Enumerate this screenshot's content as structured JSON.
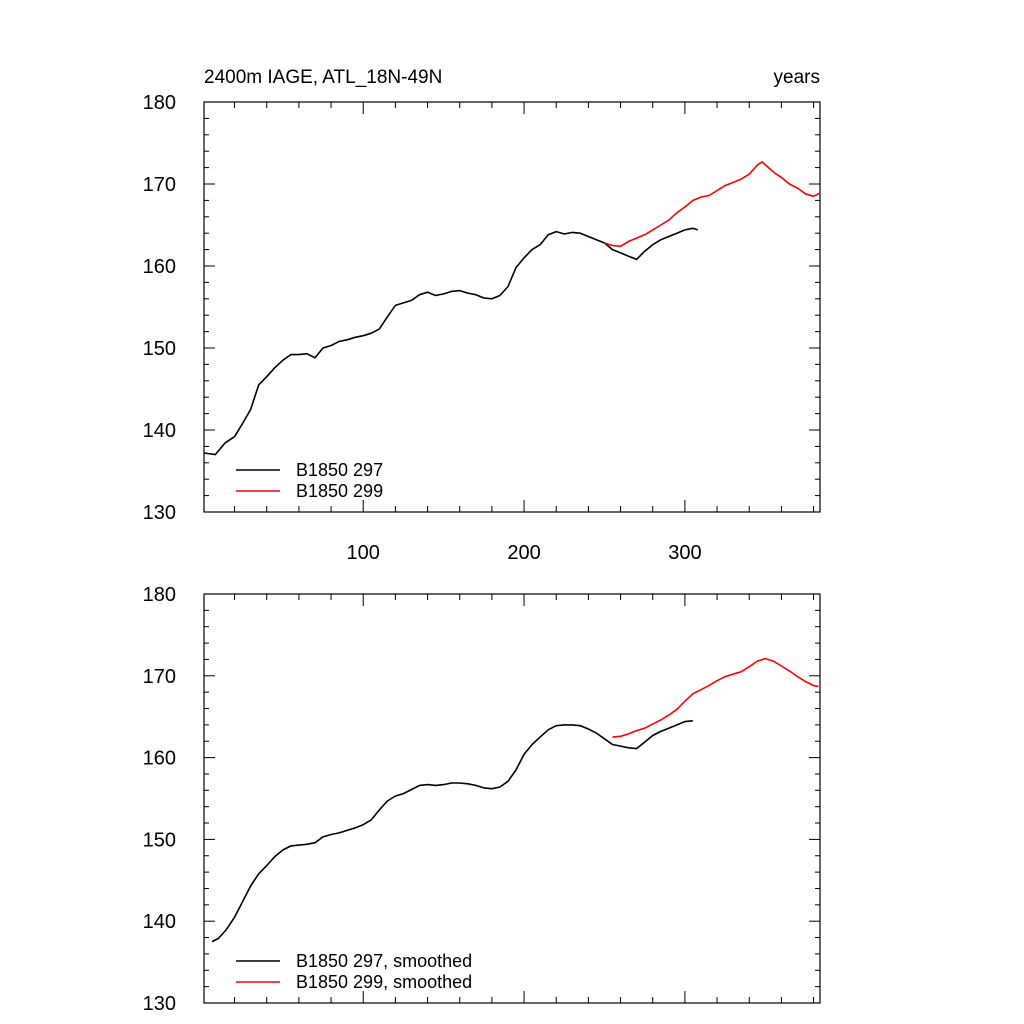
{
  "chart_data": [
    {
      "type": "line",
      "title": "2400m IAGE, ATL_18N-49N",
      "units_label": "years",
      "xlim": [
        1,
        384
      ],
      "ylim": [
        130,
        180
      ],
      "x_ticks": [
        100,
        200,
        300
      ],
      "y_ticks": [
        130,
        140,
        150,
        160,
        170,
        180
      ],
      "x_tick_labels": [
        "100",
        "200",
        "300"
      ],
      "y_tick_labels": [
        "130",
        "140",
        "150",
        "160",
        "170",
        "180"
      ],
      "legend_position": "bottom-left",
      "series": [
        {
          "name": "B1850 297",
          "color": "#000000",
          "points": [
            [
              1,
              137.2
            ],
            [
              8,
              137.0
            ],
            [
              14,
              138.4
            ],
            [
              20,
              139.2
            ],
            [
              25,
              140.8
            ],
            [
              30,
              142.5
            ],
            [
              35,
              145.5
            ],
            [
              40,
              146.5
            ],
            [
              45,
              147.6
            ],
            [
              50,
              148.5
            ],
            [
              55,
              149.2
            ],
            [
              60,
              149.2
            ],
            [
              65,
              149.3
            ],
            [
              70,
              148.8
            ],
            [
              75,
              150.0
            ],
            [
              80,
              150.3
            ],
            [
              85,
              150.8
            ],
            [
              90,
              151.0
            ],
            [
              95,
              151.3
            ],
            [
              100,
              151.5
            ],
            [
              105,
              151.8
            ],
            [
              110,
              152.3
            ],
            [
              115,
              153.8
            ],
            [
              120,
              155.2
            ],
            [
              125,
              155.5
            ],
            [
              130,
              155.8
            ],
            [
              135,
              156.5
            ],
            [
              140,
              156.8
            ],
            [
              145,
              156.4
            ],
            [
              150,
              156.6
            ],
            [
              155,
              156.9
            ],
            [
              160,
              157.0
            ],
            [
              165,
              156.7
            ],
            [
              170,
              156.5
            ],
            [
              175,
              156.1
            ],
            [
              180,
              156.0
            ],
            [
              185,
              156.4
            ],
            [
              190,
              157.5
            ],
            [
              195,
              159.8
            ],
            [
              200,
              161.0
            ],
            [
              205,
              162.0
            ],
            [
              210,
              162.6
            ],
            [
              215,
              163.8
            ],
            [
              220,
              164.2
            ],
            [
              225,
              163.9
            ],
            [
              230,
              164.1
            ],
            [
              235,
              164.0
            ],
            [
              240,
              163.6
            ],
            [
              245,
              163.2
            ],
            [
              250,
              162.8
            ],
            [
              255,
              162.0
            ],
            [
              260,
              161.6
            ],
            [
              265,
              161.2
            ],
            [
              270,
              160.8
            ],
            [
              275,
              161.8
            ],
            [
              280,
              162.6
            ],
            [
              285,
              163.2
            ],
            [
              290,
              163.6
            ],
            [
              295,
              164.0
            ],
            [
              300,
              164.4
            ],
            [
              305,
              164.6
            ],
            [
              308,
              164.4
            ]
          ]
        },
        {
          "name": "B1850 299",
          "color": "#ff0000",
          "points": [
            [
              250,
              162.8
            ],
            [
              255,
              162.5
            ],
            [
              260,
              162.4
            ],
            [
              265,
              163.0
            ],
            [
              270,
              163.4
            ],
            [
              275,
              163.8
            ],
            [
              280,
              164.4
            ],
            [
              285,
              165.0
            ],
            [
              290,
              165.6
            ],
            [
              295,
              166.5
            ],
            [
              300,
              167.2
            ],
            [
              305,
              168.0
            ],
            [
              310,
              168.4
            ],
            [
              315,
              168.6
            ],
            [
              320,
              169.2
            ],
            [
              325,
              169.8
            ],
            [
              330,
              170.2
            ],
            [
              335,
              170.6
            ],
            [
              340,
              171.2
            ],
            [
              345,
              172.3
            ],
            [
              348,
              172.7
            ],
            [
              352,
              172.0
            ],
            [
              356,
              171.3
            ],
            [
              360,
              170.8
            ],
            [
              365,
              170.0
            ],
            [
              370,
              169.5
            ],
            [
              375,
              168.8
            ],
            [
              380,
              168.5
            ],
            [
              384,
              168.9
            ]
          ]
        }
      ]
    },
    {
      "type": "line",
      "xlim": [
        1,
        384
      ],
      "ylim": [
        130,
        180
      ],
      "x_ticks": [
        100,
        200,
        300
      ],
      "y_ticks": [
        130,
        140,
        150,
        160,
        170,
        180
      ],
      "y_tick_labels": [
        "130",
        "140",
        "150",
        "160",
        "170",
        "180"
      ],
      "legend_position": "bottom-left",
      "series": [
        {
          "name": "B1850 297, smoothed",
          "color": "#000000",
          "points": [
            [
              6,
              137.5
            ],
            [
              10,
              137.9
            ],
            [
              15,
              139.0
            ],
            [
              20,
              140.5
            ],
            [
              25,
              142.4
            ],
            [
              30,
              144.3
            ],
            [
              35,
              145.8
            ],
            [
              40,
              146.8
            ],
            [
              45,
              147.9
            ],
            [
              50,
              148.7
            ],
            [
              55,
              149.2
            ],
            [
              60,
              149.3
            ],
            [
              65,
              149.4
            ],
            [
              70,
              149.6
            ],
            [
              75,
              150.3
            ],
            [
              80,
              150.6
            ],
            [
              85,
              150.8
            ],
            [
              90,
              151.1
            ],
            [
              95,
              151.4
            ],
            [
              100,
              151.8
            ],
            [
              105,
              152.4
            ],
            [
              110,
              153.6
            ],
            [
              115,
              154.7
            ],
            [
              120,
              155.3
            ],
            [
              125,
              155.6
            ],
            [
              130,
              156.1
            ],
            [
              135,
              156.6
            ],
            [
              140,
              156.7
            ],
            [
              145,
              156.6
            ],
            [
              150,
              156.7
            ],
            [
              155,
              156.9
            ],
            [
              160,
              156.9
            ],
            [
              165,
              156.8
            ],
            [
              170,
              156.6
            ],
            [
              175,
              156.3
            ],
            [
              180,
              156.2
            ],
            [
              185,
              156.4
            ],
            [
              190,
              157.1
            ],
            [
              195,
              158.5
            ],
            [
              200,
              160.4
            ],
            [
              205,
              161.6
            ],
            [
              210,
              162.5
            ],
            [
              215,
              163.4
            ],
            [
              220,
              163.9
            ],
            [
              225,
              164.0
            ],
            [
              230,
              164.0
            ],
            [
              235,
              163.9
            ],
            [
              240,
              163.5
            ],
            [
              245,
              163.0
            ],
            [
              250,
              162.3
            ],
            [
              255,
              161.6
            ],
            [
              260,
              161.4
            ],
            [
              265,
              161.2
            ],
            [
              270,
              161.1
            ],
            [
              275,
              161.9
            ],
            [
              280,
              162.7
            ],
            [
              285,
              163.2
            ],
            [
              290,
              163.6
            ],
            [
              295,
              164.0
            ],
            [
              300,
              164.4
            ],
            [
              305,
              164.5
            ]
          ]
        },
        {
          "name": "B1850 299, smoothed",
          "color": "#ff0000",
          "points": [
            [
              255,
              162.5
            ],
            [
              260,
              162.6
            ],
            [
              265,
              162.9
            ],
            [
              270,
              163.3
            ],
            [
              275,
              163.6
            ],
            [
              280,
              164.1
            ],
            [
              285,
              164.6
            ],
            [
              290,
              165.2
            ],
            [
              295,
              165.9
            ],
            [
              300,
              166.9
            ],
            [
              305,
              167.8
            ],
            [
              310,
              168.3
            ],
            [
              315,
              168.8
            ],
            [
              320,
              169.4
            ],
            [
              325,
              169.9
            ],
            [
              330,
              170.2
            ],
            [
              335,
              170.5
            ],
            [
              340,
              171.1
            ],
            [
              345,
              171.8
            ],
            [
              350,
              172.1
            ],
            [
              355,
              171.8
            ],
            [
              360,
              171.2
            ],
            [
              365,
              170.6
            ],
            [
              370,
              169.9
            ],
            [
              375,
              169.3
            ],
            [
              380,
              168.8
            ],
            [
              383,
              168.7
            ]
          ]
        }
      ]
    }
  ]
}
